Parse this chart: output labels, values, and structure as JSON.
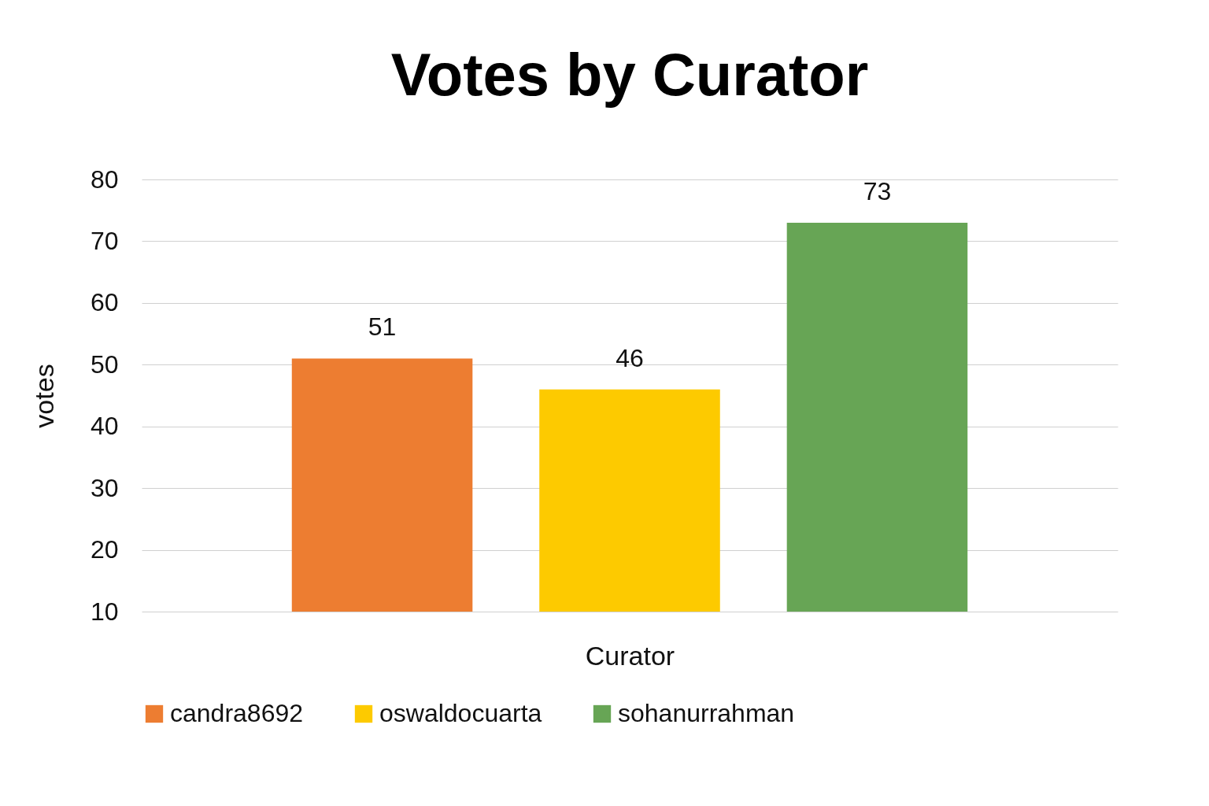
{
  "chart_data": {
    "type": "bar",
    "title": "Votes by Curator",
    "xlabel": "Curator",
    "ylabel": "votes",
    "categories": [
      null
    ],
    "series": [
      {
        "name": "candra8692",
        "color": "#ed7d31",
        "values": [
          51
        ]
      },
      {
        "name": "oswaldocuarta",
        "color": "#fdca00",
        "values": [
          46
        ]
      },
      {
        "name": "sohanurrahman",
        "color": "#67a555",
        "values": [
          73
        ]
      }
    ],
    "ylim": [
      10,
      80
    ],
    "yticks": [
      10,
      20,
      30,
      40,
      50,
      60,
      70,
      80
    ],
    "grid": "y",
    "legend": "bottom",
    "tick_labels": "y",
    "data_labels": true
  }
}
